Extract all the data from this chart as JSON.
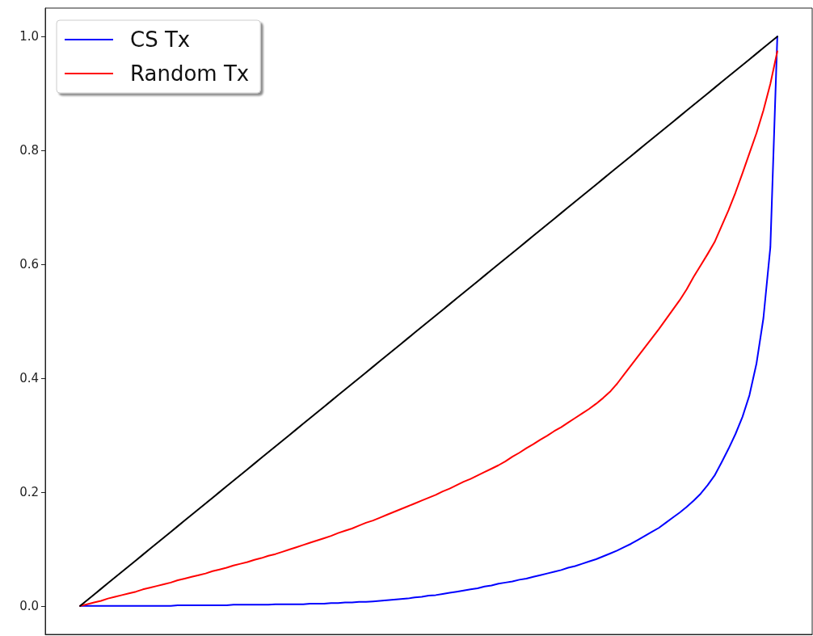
{
  "chart_data": {
    "type": "line",
    "categories": [
      null,
      null,
      null,
      null,
      null,
      null,
      null,
      null,
      null,
      null,
      null,
      null,
      null,
      null,
      null,
      null,
      null,
      null,
      null,
      null,
      null,
      null,
      null,
      null,
      null,
      null,
      null,
      null,
      null,
      null,
      null,
      null,
      null,
      null,
      null,
      null,
      null,
      null,
      null,
      null,
      null,
      null,
      null,
      null,
      null,
      null,
      null,
      null,
      null,
      null,
      null,
      null,
      null,
      null,
      null,
      null,
      null,
      null,
      null,
      null,
      null,
      null,
      null,
      null,
      null,
      null,
      null,
      null,
      null,
      null,
      null,
      null,
      null,
      null,
      null,
      null,
      null,
      null,
      null,
      null,
      null,
      null,
      null,
      null,
      null,
      null,
      null,
      null,
      null,
      null,
      null,
      null,
      null,
      null,
      null,
      null,
      null,
      null,
      null,
      null,
      null
    ],
    "series": [
      {
        "name": "CS Tx",
        "color": "#0000ff",
        "values": [
          0,
          0,
          0,
          0,
          0,
          0,
          0,
          0,
          0,
          0,
          0,
          0,
          0,
          0,
          0.001,
          0.001,
          0.001,
          0.001,
          0.001,
          0.001,
          0.001,
          0.001,
          0.002,
          0.002,
          0.002,
          0.002,
          0.002,
          0.002,
          0.003,
          0.003,
          0.003,
          0.003,
          0.003,
          0.004,
          0.004,
          0.004,
          0.005,
          0.005,
          0.006,
          0.006,
          0.007,
          0.007,
          0.008,
          0.009,
          0.01,
          0.011,
          0.012,
          0.013,
          0.015,
          0.016,
          0.018,
          0.019,
          0.021,
          0.023,
          0.025,
          0.027,
          0.029,
          0.031,
          0.034,
          0.036,
          0.039,
          0.041,
          0.043,
          0.046,
          0.048,
          0.051,
          0.054,
          0.057,
          0.06,
          0.063,
          0.067,
          0.07,
          0.074,
          0.078,
          0.082,
          0.087,
          0.092,
          0.097,
          0.103,
          0.109,
          0.116,
          0.123,
          0.13,
          0.137,
          0.146,
          0.155,
          0.164,
          0.174,
          0.185,
          0.197,
          0.212,
          0.229,
          0.252,
          0.276,
          0.302,
          0.332,
          0.37,
          0.425,
          0.505,
          0.63,
          1.0
        ]
      },
      {
        "name": "Random Tx",
        "color": "#ff0000",
        "values": [
          0,
          0.003,
          0.006,
          0.009,
          0.013,
          0.016,
          0.019,
          0.022,
          0.025,
          0.029,
          0.032,
          0.035,
          0.038,
          0.041,
          0.045,
          0.048,
          0.051,
          0.054,
          0.057,
          0.061,
          0.064,
          0.067,
          0.071,
          0.074,
          0.077,
          0.081,
          0.084,
          0.088,
          0.091,
          0.095,
          0.099,
          0.103,
          0.107,
          0.111,
          0.115,
          0.119,
          0.123,
          0.128,
          0.132,
          0.136,
          0.141,
          0.146,
          0.15,
          0.155,
          0.16,
          0.165,
          0.17,
          0.175,
          0.18,
          0.185,
          0.19,
          0.195,
          0.201,
          0.206,
          0.212,
          0.218,
          0.223,
          0.229,
          0.235,
          0.241,
          0.247,
          0.254,
          0.262,
          0.269,
          0.277,
          0.284,
          0.292,
          0.299,
          0.307,
          0.314,
          0.322,
          0.33,
          0.338,
          0.346,
          0.355,
          0.365,
          0.376,
          0.39,
          0.406,
          0.422,
          0.438,
          0.454,
          0.47,
          0.486,
          0.503,
          0.52,
          0.537,
          0.556,
          0.578,
          0.598,
          0.618,
          0.639,
          0.667,
          0.695,
          0.726,
          0.76,
          0.795,
          0.83,
          0.87,
          0.917,
          0.974
        ]
      },
      {
        "color": "#000000",
        "values": [
          0,
          0.01,
          0.02,
          0.03,
          0.04,
          0.05,
          0.06,
          0.07,
          0.08,
          0.09,
          0.1,
          0.11,
          0.12,
          0.13,
          0.14,
          0.15,
          0.16,
          0.17,
          0.18,
          0.19,
          0.2,
          0.21,
          0.22,
          0.23,
          0.24,
          0.25,
          0.26,
          0.27,
          0.28,
          0.29,
          0.3,
          0.31,
          0.32,
          0.33,
          0.34,
          0.35,
          0.36,
          0.37,
          0.38,
          0.39,
          0.4,
          0.41,
          0.42,
          0.43,
          0.44,
          0.45,
          0.46,
          0.47,
          0.48,
          0.49,
          0.5,
          0.51,
          0.52,
          0.53,
          0.54,
          0.55,
          0.56,
          0.57,
          0.58,
          0.59,
          0.6,
          0.61,
          0.62,
          0.63,
          0.64,
          0.65,
          0.66,
          0.67,
          0.68,
          0.69,
          0.7,
          0.71,
          0.72,
          0.73,
          0.74,
          0.75,
          0.76,
          0.77,
          0.78,
          0.79,
          0.8,
          0.81,
          0.82,
          0.83,
          0.84,
          0.85,
          0.86,
          0.87,
          0.88,
          0.89,
          0.9,
          0.91,
          0.92,
          0.93,
          0.94,
          0.95,
          0.96,
          0.97,
          0.98,
          0.99,
          1.0
        ]
      }
    ],
    "ylim": [
      -0.05,
      1.05
    ],
    "yticks": [
      {
        "value": 0,
        "label": "0.0"
      },
      0.2,
      0.4,
      0.6,
      0.8,
      {
        "value": 1,
        "label": "1.0"
      }
    ],
    "grid": false,
    "legend": "top left",
    "marker": "none",
    "line_style": "solid"
  }
}
